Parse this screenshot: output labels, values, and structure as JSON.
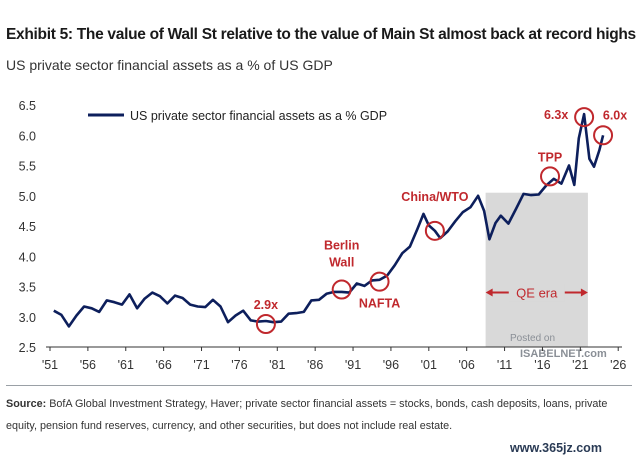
{
  "header": {
    "title": "Exhibit 5: The value of Wall St relative to the value of Main St almost back at record highs",
    "subtitle": "US private sector financial assets as a % of US GDP"
  },
  "source": {
    "label": "Source:",
    "text": "BofA Global Investment Strategy, Haver; private sector financial assets = stocks, bonds, cash deposits, loans, private equity, pension fund reserves, currency, and other securities, but does not include real estate."
  },
  "watermark": {
    "line1": "Posted on",
    "line2": "ISABELNET.com"
  },
  "site_stamp": "www.365jz.com",
  "colors": {
    "line": "#0d1f5c",
    "annotation": "#c0282d",
    "shade": "#d9d9d9"
  },
  "chart_data": {
    "type": "line",
    "title": "",
    "xlabel": "",
    "ylabel": "",
    "ylim": [
      2.5,
      6.5
    ],
    "xlim": [
      1951,
      2026.5
    ],
    "yticks": [
      2.5,
      3.0,
      3.5,
      4.0,
      4.5,
      5.0,
      5.5,
      6.0,
      6.5
    ],
    "ytick_labels": [
      "2.5",
      "3.0",
      "3.5",
      "4.0",
      "4.5",
      "5.0",
      "5.5",
      "6.0",
      "6.5"
    ],
    "xticks": [
      1951,
      1956,
      1961,
      1966,
      1971,
      1976,
      1981,
      1986,
      1991,
      1996,
      2001,
      2006,
      2011,
      2016,
      2021,
      2026
    ],
    "xtick_labels": [
      "'51",
      "'56",
      "'61",
      "'66",
      "'71",
      "'76",
      "'81",
      "'86",
      "'91",
      "'96",
      "'01",
      "'06",
      "'11",
      "'16",
      "'21",
      "'26"
    ],
    "grid": false,
    "legend_position": "top-left",
    "shaded_region": {
      "x_start": 2008.5,
      "x_end": 2022,
      "label": "QE era"
    },
    "series": [
      {
        "name": "US private sector financial assets as a % GDP",
        "points": [
          [
            1951.5,
            3.1
          ],
          [
            1952.5,
            2.98
          ],
          [
            1953.5,
            2.88
          ],
          [
            1954.5,
            3.02
          ],
          [
            1955.5,
            3.12
          ],
          [
            1956.5,
            3.18
          ],
          [
            1957.5,
            3.08
          ],
          [
            1958.5,
            3.22
          ],
          [
            1959.5,
            3.28
          ],
          [
            1960.5,
            3.2
          ],
          [
            1961.5,
            3.32
          ],
          [
            1962.5,
            3.18
          ],
          [
            1963.5,
            3.3
          ],
          [
            1964.5,
            3.35
          ],
          [
            1965.5,
            3.38
          ],
          [
            1966.5,
            3.22
          ],
          [
            1967.5,
            3.3
          ],
          [
            1968.5,
            3.35
          ],
          [
            1969.5,
            3.2
          ],
          [
            1970.5,
            3.12
          ],
          [
            1971.5,
            3.2
          ],
          [
            1972.5,
            3.28
          ],
          [
            1973.5,
            3.12
          ],
          [
            1974.5,
            2.95
          ],
          [
            1975.5,
            3.02
          ],
          [
            1976.5,
            3.05
          ],
          [
            1977.5,
            2.98
          ],
          [
            1978.5,
            2.92
          ],
          [
            1979.5,
            2.88
          ],
          [
            1980.5,
            2.95
          ],
          [
            1981.5,
            2.92
          ],
          [
            1982.5,
            3.0
          ],
          [
            1983.5,
            3.1
          ],
          [
            1984.5,
            3.08
          ],
          [
            1985.5,
            3.22
          ],
          [
            1986.5,
            3.32
          ],
          [
            1987.5,
            3.38
          ],
          [
            1988.5,
            3.36
          ],
          [
            1989.5,
            3.45
          ],
          [
            1990.5,
            3.4
          ],
          [
            1991.5,
            3.5
          ],
          [
            1992.5,
            3.55
          ],
          [
            1993.5,
            3.6
          ],
          [
            1994.5,
            3.56
          ],
          [
            1995.5,
            3.72
          ],
          [
            1996.5,
            3.85
          ],
          [
            1997.5,
            4.0
          ],
          [
            1998.5,
            4.2
          ],
          [
            1999.5,
            4.45
          ],
          [
            2000.3,
            4.65
          ],
          [
            2001.0,
            4.55
          ],
          [
            2001.8,
            4.42
          ],
          [
            2002.5,
            4.25
          ],
          [
            2003.5,
            4.45
          ],
          [
            2004.5,
            4.58
          ],
          [
            2005.5,
            4.68
          ],
          [
            2006.5,
            4.85
          ],
          [
            2007.5,
            5.0
          ],
          [
            2008.3,
            4.7
          ],
          [
            2009.0,
            4.32
          ],
          [
            2009.8,
            4.55
          ],
          [
            2010.5,
            4.62
          ],
          [
            2011.5,
            4.58
          ],
          [
            2012.5,
            4.78
          ],
          [
            2013.5,
            4.98
          ],
          [
            2014.5,
            5.05
          ],
          [
            2015.5,
            5.02
          ],
          [
            2016.5,
            5.12
          ],
          [
            2017.5,
            5.32
          ],
          [
            2018.5,
            5.2
          ],
          [
            2019.5,
            5.45
          ],
          [
            2020.2,
            5.22
          ],
          [
            2020.8,
            5.95
          ],
          [
            2021.5,
            6.3
          ],
          [
            2022.2,
            5.65
          ],
          [
            2022.8,
            5.48
          ],
          [
            2023.5,
            5.7
          ],
          [
            2024.0,
            6.0
          ]
        ]
      }
    ],
    "annotations": [
      {
        "text": "2.9x",
        "x": 1979.5,
        "y": 2.88,
        "circle": true,
        "label_side": "above"
      },
      {
        "text": "Berlin Wall",
        "x": 1989.5,
        "y": 3.45,
        "circle": true,
        "label_side": "above"
      },
      {
        "text": "NAFTA",
        "x": 1994.5,
        "y": 3.58,
        "circle": true,
        "label_side": "below"
      },
      {
        "text": "China/WTO",
        "x": 2001.8,
        "y": 4.42,
        "circle": true,
        "label_side": "above"
      },
      {
        "text": "TPP",
        "x": 2017.0,
        "y": 5.32,
        "circle": true,
        "label_side": "above"
      },
      {
        "text": "6.3x",
        "x": 2021.5,
        "y": 6.3,
        "circle": true,
        "label_side": "left"
      },
      {
        "text": "6.0x",
        "x": 2024.0,
        "y": 6.0,
        "circle": true,
        "label_side": "above-right"
      }
    ]
  }
}
